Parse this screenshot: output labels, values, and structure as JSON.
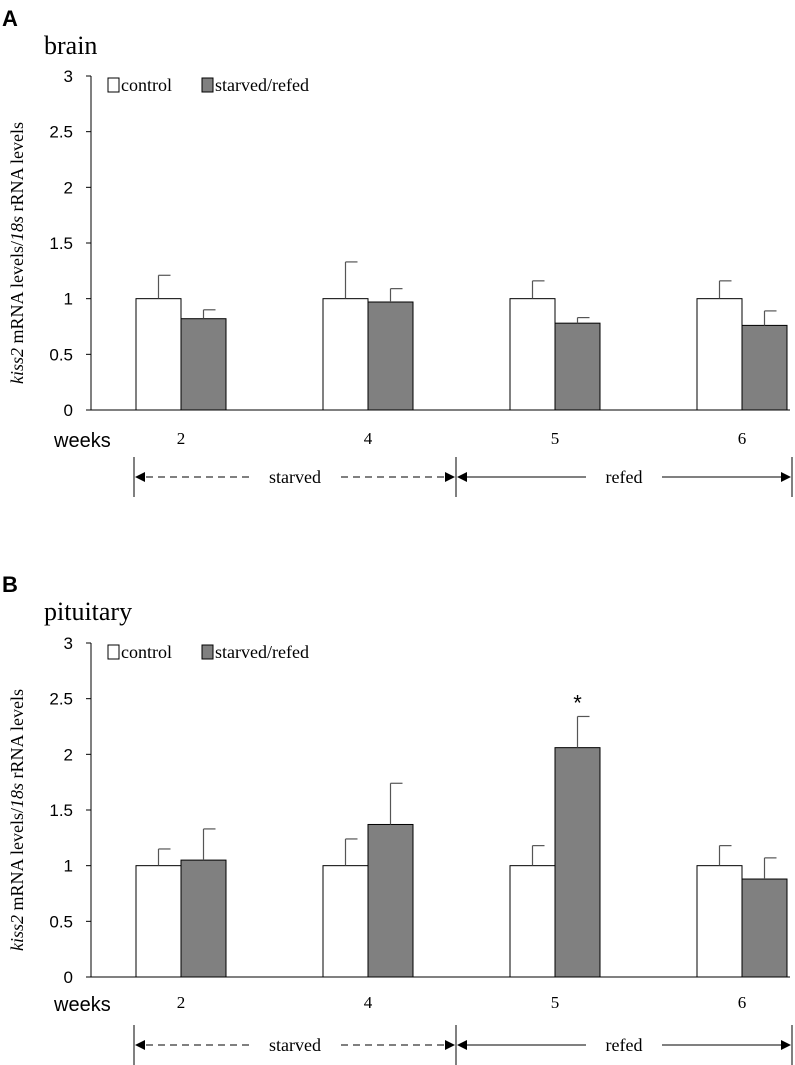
{
  "chart_data": [
    {
      "type": "bar",
      "panel": "A",
      "title": "brain",
      "ylabel_italic": "kiss2",
      "ylabel_mid": " mRNA levels/",
      "ylabel_italic2": "18s",
      "ylabel_end": " rRNA levels",
      "xlabel": "weeks",
      "categories": [
        "2",
        "4",
        "5",
        "6"
      ],
      "ylim": [
        0,
        3
      ],
      "yticks": [
        "0",
        "0.5",
        "1",
        "1.5",
        "2",
        "2.5",
        "3"
      ],
      "series": [
        {
          "name": "control",
          "color": "#ffffff",
          "values": [
            1.0,
            1.0,
            1.0,
            1.0
          ],
          "errors": [
            0.21,
            0.33,
            0.16,
            0.16
          ]
        },
        {
          "name": "starved/refed",
          "color": "#808080",
          "values": [
            0.82,
            0.97,
            0.78,
            0.76
          ],
          "errors": [
            0.08,
            0.12,
            0.05,
            0.13
          ]
        }
      ],
      "significance": [
        "",
        "",
        "",
        ""
      ],
      "periods": [
        {
          "label": "starved",
          "style": "dashed"
        },
        {
          "label": "refed",
          "style": "solid"
        }
      ]
    },
    {
      "type": "bar",
      "panel": "B",
      "title": "pituitary",
      "ylabel_italic": "kiss2",
      "ylabel_mid": " mRNA levels/",
      "ylabel_italic2": "18s",
      "ylabel_end": " rRNA levels",
      "xlabel": "weeks",
      "categories": [
        "2",
        "4",
        "5",
        "6"
      ],
      "ylim": [
        0,
        3
      ],
      "yticks": [
        "0",
        "0.5",
        "1",
        "1.5",
        "2",
        "2.5",
        "3"
      ],
      "series": [
        {
          "name": "control",
          "color": "#ffffff",
          "values": [
            1.0,
            1.0,
            1.0,
            1.0
          ],
          "errors": [
            0.15,
            0.24,
            0.18,
            0.18
          ]
        },
        {
          "name": "starved/refed",
          "color": "#808080",
          "values": [
            1.05,
            1.37,
            2.06,
            0.88
          ],
          "errors": [
            0.28,
            0.37,
            0.28,
            0.19
          ]
        }
      ],
      "significance": [
        "",
        "",
        "*",
        ""
      ],
      "periods": [
        {
          "label": "starved",
          "style": "dashed"
        },
        {
          "label": "refed",
          "style": "solid"
        }
      ]
    }
  ]
}
